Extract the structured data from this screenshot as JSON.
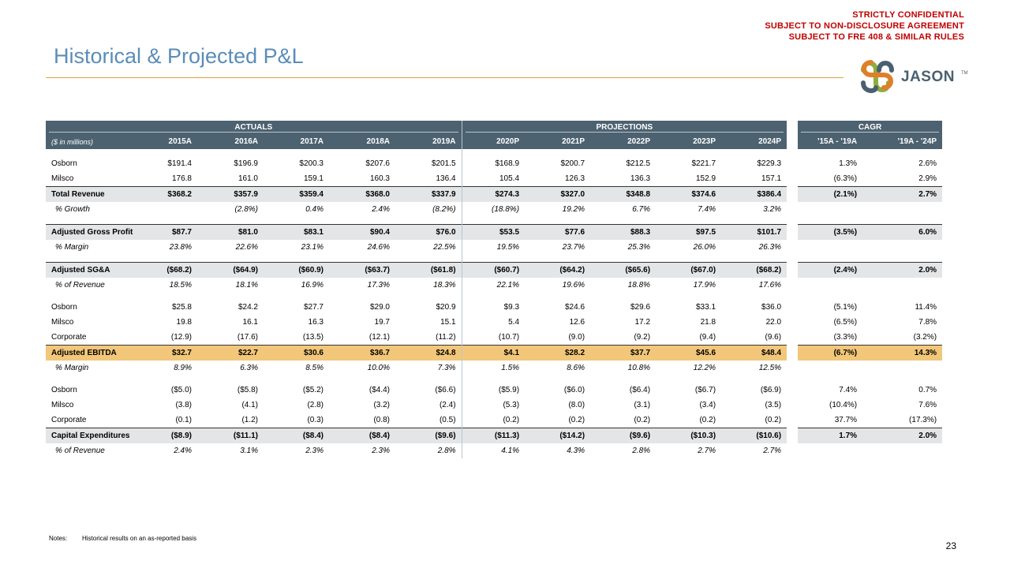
{
  "confidential": [
    "STRICTLY CONFIDENTIAL",
    "SUBJECT TO NON-DISCLOSURE AGREEMENT",
    "SUBJECT TO FRE 408 & SIMILAR RULES"
  ],
  "title": "Historical & Projected P&L",
  "logo": {
    "text": "JASON",
    "tm": "TM",
    "colors": {
      "orange": "#e07f2a",
      "green": "#8dae3c",
      "slate": "#4a6070"
    }
  },
  "header": {
    "groups": {
      "actuals": "ACTUALS",
      "projections": "PROJECTIONS",
      "cagr": "CAGR"
    },
    "units": "($ in millions)",
    "years": [
      "2015A",
      "2016A",
      "2017A",
      "2018A",
      "2019A",
      "2020P",
      "2021P",
      "2022P",
      "2023P",
      "2024P"
    ],
    "cagr_cols": [
      "'15A - '19A",
      "'19A - '24P"
    ]
  },
  "rows": {
    "osborn_rev": {
      "label": "Osborn",
      "values": [
        "$191.4",
        "$196.9",
        "$200.3",
        "$207.6",
        "$201.5",
        "$168.9",
        "$200.7",
        "$212.5",
        "$221.7",
        "$229.3"
      ],
      "cagr": [
        "1.3%",
        "2.6%"
      ]
    },
    "milsco_rev": {
      "label": "Milsco",
      "values": [
        "176.8",
        "161.0",
        "159.1",
        "160.3",
        "136.4",
        "105.4",
        "126.3",
        "136.3",
        "152.9",
        "157.1"
      ],
      "cagr": [
        "(6.3%)",
        "2.9%"
      ]
    },
    "total_rev": {
      "label": "Total Revenue",
      "values": [
        "$368.2",
        "$357.9",
        "$359.4",
        "$368.0",
        "$337.9",
        "$274.3",
        "$327.0",
        "$348.8",
        "$374.6",
        "$386.4"
      ],
      "cagr": [
        "(2.1%)",
        "2.7%"
      ]
    },
    "growth": {
      "label": "% Growth",
      "values": [
        "",
        "(2.8%)",
        "0.4%",
        "2.4%",
        "(8.2%)",
        "(18.8%)",
        "19.2%",
        "6.7%",
        "7.4%",
        "3.2%"
      ],
      "cagr": [
        "",
        ""
      ]
    },
    "gross_profit": {
      "label": "Adjusted Gross Profit",
      "values": [
        "$87.7",
        "$81.0",
        "$83.1",
        "$90.4",
        "$76.0",
        "$53.5",
        "$77.6",
        "$88.3",
        "$97.5",
        "$101.7"
      ],
      "cagr": [
        "(3.5%)",
        "6.0%"
      ]
    },
    "gp_margin": {
      "label": "% Margin",
      "values": [
        "23.8%",
        "22.6%",
        "23.1%",
        "24.6%",
        "22.5%",
        "19.5%",
        "23.7%",
        "25.3%",
        "26.0%",
        "26.3%"
      ],
      "cagr": [
        "",
        ""
      ]
    },
    "sga": {
      "label": "Adjusted SG&A",
      "values": [
        "($68.2)",
        "($64.9)",
        "($60.9)",
        "($63.7)",
        "($61.8)",
        "($60.7)",
        "($64.2)",
        "($65.6)",
        "($67.0)",
        "($68.2)"
      ],
      "cagr": [
        "(2.4%)",
        "2.0%"
      ]
    },
    "sga_pct": {
      "label": "% of Revenue",
      "values": [
        "18.5%",
        "18.1%",
        "16.9%",
        "17.3%",
        "18.3%",
        "22.1%",
        "19.6%",
        "18.8%",
        "17.9%",
        "17.6%"
      ],
      "cagr": [
        "",
        ""
      ]
    },
    "osborn_ebitda": {
      "label": "Osborn",
      "values": [
        "$25.8",
        "$24.2",
        "$27.7",
        "$29.0",
        "$20.9",
        "$9.3",
        "$24.6",
        "$29.6",
        "$33.1",
        "$36.0"
      ],
      "cagr": [
        "(5.1%)",
        "11.4%"
      ]
    },
    "milsco_ebitda": {
      "label": "Milsco",
      "values": [
        "19.8",
        "16.1",
        "16.3",
        "19.7",
        "15.1",
        "5.4",
        "12.6",
        "17.2",
        "21.8",
        "22.0"
      ],
      "cagr": [
        "(6.5%)",
        "7.8%"
      ]
    },
    "corp_ebitda": {
      "label": "Corporate",
      "values": [
        "(12.9)",
        "(17.6)",
        "(13.5)",
        "(12.1)",
        "(11.2)",
        "(10.7)",
        "(9.0)",
        "(9.2)",
        "(9.4)",
        "(9.6)"
      ],
      "cagr": [
        "(3.3%)",
        "(3.2%)"
      ]
    },
    "ebitda": {
      "label": "Adjusted EBITDA",
      "values": [
        "$32.7",
        "$22.7",
        "$30.6",
        "$36.7",
        "$24.8",
        "$4.1",
        "$28.2",
        "$37.7",
        "$45.6",
        "$48.4"
      ],
      "cagr": [
        "(6.7%)",
        "14.3%"
      ]
    },
    "ebitda_margin": {
      "label": "% Margin",
      "values": [
        "8.9%",
        "6.3%",
        "8.5%",
        "10.0%",
        "7.3%",
        "1.5%",
        "8.6%",
        "10.8%",
        "12.2%",
        "12.5%"
      ],
      "cagr": [
        "",
        ""
      ]
    },
    "osborn_capex": {
      "label": "Osborn",
      "values": [
        "($5.0)",
        "($5.8)",
        "($5.2)",
        "($4.4)",
        "($6.6)",
        "($5.9)",
        "($6.0)",
        "($6.4)",
        "($6.7)",
        "($6.9)"
      ],
      "cagr": [
        "7.4%",
        "0.7%"
      ]
    },
    "milsco_capex": {
      "label": "Milsco",
      "values": [
        "(3.8)",
        "(4.1)",
        "(2.8)",
        "(3.2)",
        "(2.4)",
        "(5.3)",
        "(8.0)",
        "(3.1)",
        "(3.4)",
        "(3.5)"
      ],
      "cagr": [
        "(10.4%)",
        "7.6%"
      ]
    },
    "corp_capex": {
      "label": "Corporate",
      "values": [
        "(0.1)",
        "(1.2)",
        "(0.3)",
        "(0.8)",
        "(0.5)",
        "(0.2)",
        "(0.2)",
        "(0.2)",
        "(0.2)",
        "(0.2)"
      ],
      "cagr": [
        "37.7%",
        "(17.3%)"
      ]
    },
    "capex": {
      "label": "Capital Expenditures",
      "values": [
        "($8.9)",
        "($11.1)",
        "($8.4)",
        "($8.4)",
        "($9.6)",
        "($11.3)",
        "($14.2)",
        "($9.6)",
        "($10.3)",
        "($10.6)"
      ],
      "cagr": [
        "1.7%",
        "2.0%"
      ]
    },
    "capex_pct": {
      "label": "% of Revenue",
      "values": [
        "2.4%",
        "3.1%",
        "2.3%",
        "2.3%",
        "2.8%",
        "4.1%",
        "4.3%",
        "2.8%",
        "2.7%",
        "2.7%"
      ],
      "cagr": [
        "",
        ""
      ]
    }
  },
  "notes": {
    "label": "Notes:",
    "text": "Historical results on an as-reported basis"
  },
  "page_number": "23"
}
